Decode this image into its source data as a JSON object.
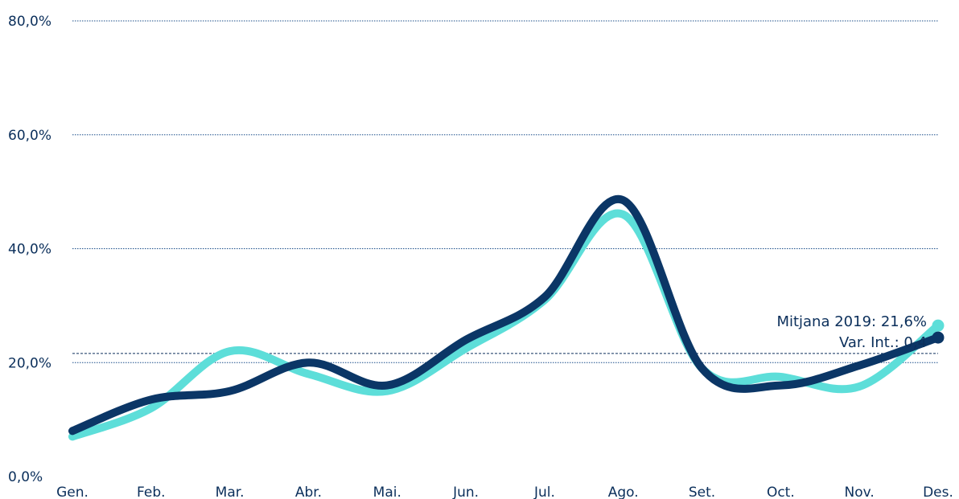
{
  "chart_data": {
    "type": "line",
    "categories": [
      "Gen.",
      "Feb.",
      "Mar.",
      "Abr.",
      "Mai.",
      "Jun.",
      "Jul.",
      "Ago.",
      "Set.",
      "Oct.",
      "Nov.",
      "Des."
    ],
    "y_tick_labels": [
      "0,0%",
      "20,0%",
      "40,0%",
      "60,0%",
      "80,0%"
    ],
    "ylim": [
      0,
      80
    ],
    "grid": true,
    "title": "",
    "xlabel": "",
    "ylabel": "",
    "series": [
      {
        "color": "#5dded9",
        "values": [
          7.0,
          12.0,
          22.0,
          18.0,
          15.0,
          22.5,
          31.0,
          46.0,
          19.0,
          17.5,
          15.8,
          26.5
        ]
      },
      {
        "color": "#0b3666",
        "values": [
          8.0,
          13.5,
          15.0,
          20.0,
          16.0,
          24.0,
          31.5,
          48.5,
          19.0,
          16.0,
          19.5,
          24.4
        ]
      }
    ],
    "reference_line": {
      "value": 21.6,
      "label_line1": "Mitjana 2019: 21,6%",
      "label_line2": "Var. Int.: 0,4",
      "color": "#0b2f5b"
    },
    "axis_color": "#1b4f8a",
    "text_color": "#0b2f5b"
  }
}
